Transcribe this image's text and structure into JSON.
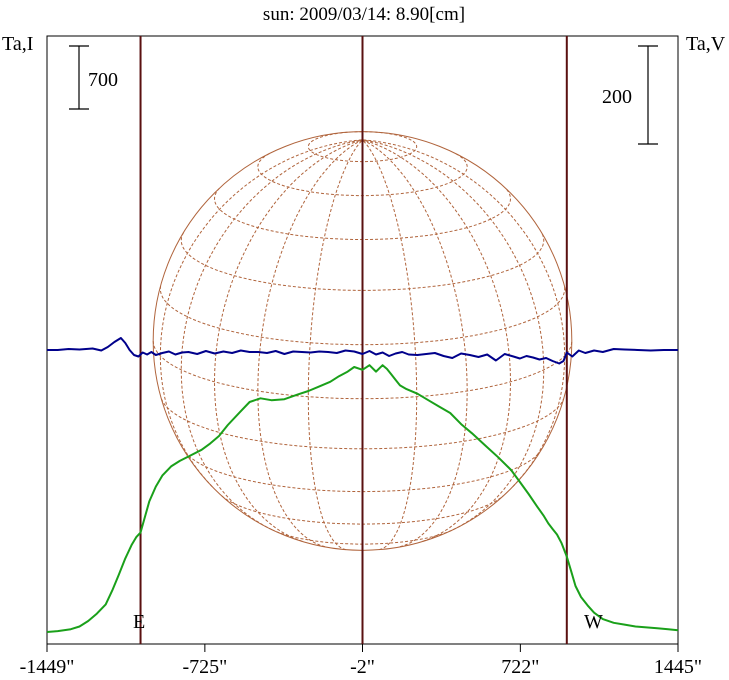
{
  "chart_data": {
    "type": "line",
    "title": "sun: 2009/03/14: 8.90[cm]",
    "left_axis_label": "Ta,I",
    "right_axis_label": "Ta,V",
    "x_ticks": [
      "-1449\"",
      "-725\"",
      "-2\"",
      "722\"",
      "1445\""
    ],
    "x_tick_values": [
      -1449,
      -725,
      -2,
      722,
      1445
    ],
    "xlim": [
      -1449,
      1445
    ],
    "limb_labels": {
      "east": "E",
      "west": "W"
    },
    "limb_positions": [
      -1020,
      935
    ],
    "center_line": -2,
    "scale_bars": {
      "left": "700",
      "right": "200"
    },
    "colors": {
      "stokes_i": "#1aa01a",
      "stokes_v": "#00008b",
      "grid": "#b0643c",
      "limb_lines": "#5a1010",
      "title": "#1a1a8a"
    },
    "series": [
      {
        "key": "I",
        "color": "#1aa01a",
        "x": [
          -1449,
          -1400,
          -1340,
          -1300,
          -1260,
          -1220,
          -1180,
          -1150,
          -1120,
          -1090,
          -1060,
          -1040,
          -1020,
          -1000,
          -980,
          -950,
          -920,
          -880,
          -840,
          -790,
          -740,
          -700,
          -660,
          -620,
          -560,
          -520,
          -470,
          -420,
          -360,
          -300,
          -250,
          -200,
          -150,
          -110,
          -70,
          -40,
          -2,
          30,
          60,
          90,
          110,
          130,
          150,
          170,
          200,
          250,
          300,
          350,
          400,
          450,
          500,
          560,
          620,
          680,
          720,
          760,
          800,
          830,
          850,
          870,
          890,
          910,
          935,
          955,
          975,
          1000,
          1030,
          1060,
          1100,
          1150,
          1200,
          1250,
          1300,
          1350,
          1400,
          1445
        ],
        "y": [
          0.0,
          0.01,
          0.03,
          0.06,
          0.12,
          0.2,
          0.3,
          0.45,
          0.62,
          0.8,
          0.95,
          1.03,
          1.08,
          1.25,
          1.42,
          1.58,
          1.7,
          1.8,
          1.86,
          1.92,
          1.98,
          2.05,
          2.13,
          2.25,
          2.4,
          2.5,
          2.54,
          2.52,
          2.53,
          2.58,
          2.62,
          2.67,
          2.72,
          2.78,
          2.83,
          2.88,
          2.85,
          2.9,
          2.83,
          2.9,
          2.86,
          2.8,
          2.74,
          2.68,
          2.64,
          2.59,
          2.52,
          2.45,
          2.38,
          2.26,
          2.16,
          2.03,
          1.9,
          1.76,
          1.63,
          1.5,
          1.36,
          1.26,
          1.18,
          1.12,
          1.06,
          0.97,
          0.82,
          0.66,
          0.5,
          0.38,
          0.29,
          0.21,
          0.14,
          0.1,
          0.08,
          0.06,
          0.05,
          0.04,
          0.03,
          0.02
        ]
      },
      {
        "key": "V",
        "color": "#00008b",
        "x": [
          -1449,
          -1400,
          -1350,
          -1300,
          -1240,
          -1200,
          -1170,
          -1140,
          -1110,
          -1090,
          -1070,
          -1050,
          -1030,
          -1010,
          -990,
          -970,
          -950,
          -920,
          -890,
          -860,
          -830,
          -800,
          -760,
          -720,
          -680,
          -640,
          -600,
          -560,
          -520,
          -480,
          -440,
          -400,
          -360,
          -320,
          -280,
          -240,
          -200,
          -160,
          -120,
          -80,
          -40,
          -2,
          30,
          60,
          90,
          120,
          150,
          180,
          210,
          250,
          290,
          330,
          370,
          410,
          450,
          490,
          530,
          570,
          610,
          650,
          690,
          720,
          750,
          780,
          810,
          840,
          870,
          900,
          920,
          935,
          960,
          990,
          1020,
          1060,
          1100,
          1150,
          1200,
          1260,
          1320,
          1380,
          1445
        ],
        "y": [
          0,
          0,
          2,
          1,
          3,
          -1,
          6,
          16,
          24,
          14,
          0,
          -10,
          -13,
          -5,
          -9,
          -4,
          -10,
          -6,
          -3,
          -9,
          -5,
          -4,
          -8,
          -2,
          -7,
          -3,
          -6,
          -1,
          -4,
          -4,
          -6,
          -2,
          -8,
          -3,
          -4,
          -5,
          -3,
          -4,
          -6,
          -1,
          -3,
          -8,
          -2,
          -9,
          -5,
          -12,
          -7,
          -4,
          -9,
          -10,
          -8,
          -6,
          -12,
          -16,
          -7,
          -10,
          -14,
          -9,
          -21,
          -8,
          -13,
          -17,
          -12,
          -15,
          -19,
          -16,
          -22,
          -27,
          -22,
          -5,
          -13,
          -1,
          -6,
          -1,
          -4,
          2,
          1,
          0,
          -1,
          0,
          0
        ]
      }
    ],
    "disk": {
      "center_x": -2,
      "radius_arcsec": 960,
      "grid_meridians_deg": [
        -75,
        -60,
        -45,
        -30,
        -15,
        0,
        15,
        30,
        45,
        60,
        75
      ],
      "grid_parallels_deg": [
        -75,
        -60,
        -45,
        -30,
        -15,
        0,
        15,
        30,
        45,
        60,
        75
      ],
      "tilt_deg": 16
    }
  }
}
